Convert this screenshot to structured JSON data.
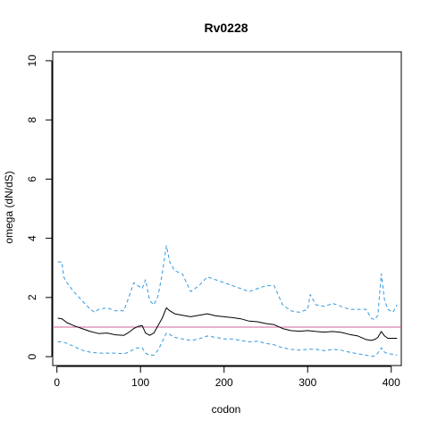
{
  "chart_data": {
    "type": "line",
    "title": "Rv0228",
    "xlabel": "codon",
    "ylabel": "omega (dN/dS)",
    "xlim": [
      -5,
      412
    ],
    "ylim": [
      -0.3,
      10.3
    ],
    "xticks": [
      0,
      100,
      200,
      300,
      400
    ],
    "yticks": [
      0,
      2,
      4,
      6,
      8,
      10
    ],
    "grid": false,
    "legend": "none",
    "reference_line": {
      "y": 1,
      "color": "#cc6699"
    },
    "series": [
      {
        "style": "solid",
        "color": "#000000",
        "x": [
          1,
          6,
          12,
          20,
          30,
          40,
          50,
          60,
          70,
          80,
          86,
          92,
          97,
          102,
          106,
          111,
          116,
          121,
          126,
          131,
          135,
          141,
          150,
          160,
          170,
          180,
          190,
          200,
          210,
          220,
          230,
          240,
          250,
          260,
          270,
          280,
          290,
          300,
          310,
          320,
          330,
          340,
          350,
          360,
          370,
          376,
          380,
          384,
          388,
          392,
          396,
          402,
          407
        ],
        "y": [
          1.3,
          1.28,
          1.15,
          1.05,
          0.95,
          0.85,
          0.78,
          0.8,
          0.74,
          0.72,
          0.82,
          0.95,
          1.02,
          1.05,
          0.8,
          0.72,
          0.8,
          1.05,
          1.3,
          1.65,
          1.55,
          1.45,
          1.4,
          1.35,
          1.4,
          1.45,
          1.38,
          1.35,
          1.32,
          1.28,
          1.2,
          1.18,
          1.12,
          1.08,
          0.95,
          0.88,
          0.86,
          0.88,
          0.85,
          0.83,
          0.85,
          0.82,
          0.75,
          0.7,
          0.58,
          0.55,
          0.58,
          0.65,
          0.85,
          0.7,
          0.62,
          0.62,
          0.62
        ]
      },
      {
        "style": "dashed",
        "color": "#3399dd",
        "x": [
          1,
          6,
          8,
          12,
          20,
          30,
          40,
          45,
          50,
          60,
          70,
          80,
          86,
          92,
          97,
          102,
          106,
          111,
          116,
          121,
          126,
          131,
          135,
          141,
          150,
          160,
          170,
          180,
          190,
          200,
          210,
          220,
          230,
          240,
          250,
          260,
          270,
          280,
          290,
          300,
          303,
          310,
          320,
          330,
          340,
          350,
          360,
          370,
          376,
          380,
          384,
          388,
          392,
          396,
          402,
          407
        ],
        "y": [
          3.2,
          3.2,
          2.7,
          2.5,
          2.2,
          1.9,
          1.6,
          1.5,
          1.6,
          1.65,
          1.55,
          1.55,
          2.0,
          2.5,
          2.4,
          2.3,
          2.6,
          1.9,
          1.75,
          2.05,
          2.8,
          3.75,
          3.2,
          2.9,
          2.8,
          2.2,
          2.4,
          2.7,
          2.6,
          2.5,
          2.4,
          2.3,
          2.2,
          2.3,
          2.4,
          2.4,
          1.75,
          1.55,
          1.5,
          1.6,
          2.1,
          1.75,
          1.7,
          1.8,
          1.7,
          1.6,
          1.6,
          1.6,
          1.3,
          1.25,
          1.4,
          2.8,
          1.9,
          1.6,
          1.5,
          1.75
        ]
      },
      {
        "style": "dashed",
        "color": "#3399dd",
        "x": [
          1,
          6,
          12,
          20,
          30,
          40,
          50,
          60,
          70,
          80,
          86,
          92,
          97,
          102,
          106,
          111,
          116,
          121,
          126,
          131,
          135,
          141,
          150,
          160,
          170,
          180,
          190,
          200,
          210,
          220,
          230,
          240,
          250,
          260,
          270,
          280,
          290,
          300,
          310,
          320,
          330,
          340,
          350,
          360,
          370,
          376,
          380,
          384,
          388,
          392,
          396,
          402,
          407
        ],
        "y": [
          0.5,
          0.5,
          0.45,
          0.35,
          0.22,
          0.15,
          0.12,
          0.12,
          0.12,
          0.1,
          0.15,
          0.25,
          0.3,
          0.3,
          0.12,
          0.05,
          0.05,
          0.22,
          0.5,
          0.8,
          0.75,
          0.65,
          0.6,
          0.55,
          0.6,
          0.7,
          0.65,
          0.6,
          0.6,
          0.55,
          0.5,
          0.52,
          0.45,
          0.4,
          0.3,
          0.25,
          0.22,
          0.25,
          0.25,
          0.2,
          0.25,
          0.22,
          0.15,
          0.1,
          0.05,
          0.02,
          0.02,
          0.12,
          0.3,
          0.15,
          0.1,
          0.08,
          0.05
        ]
      }
    ]
  }
}
